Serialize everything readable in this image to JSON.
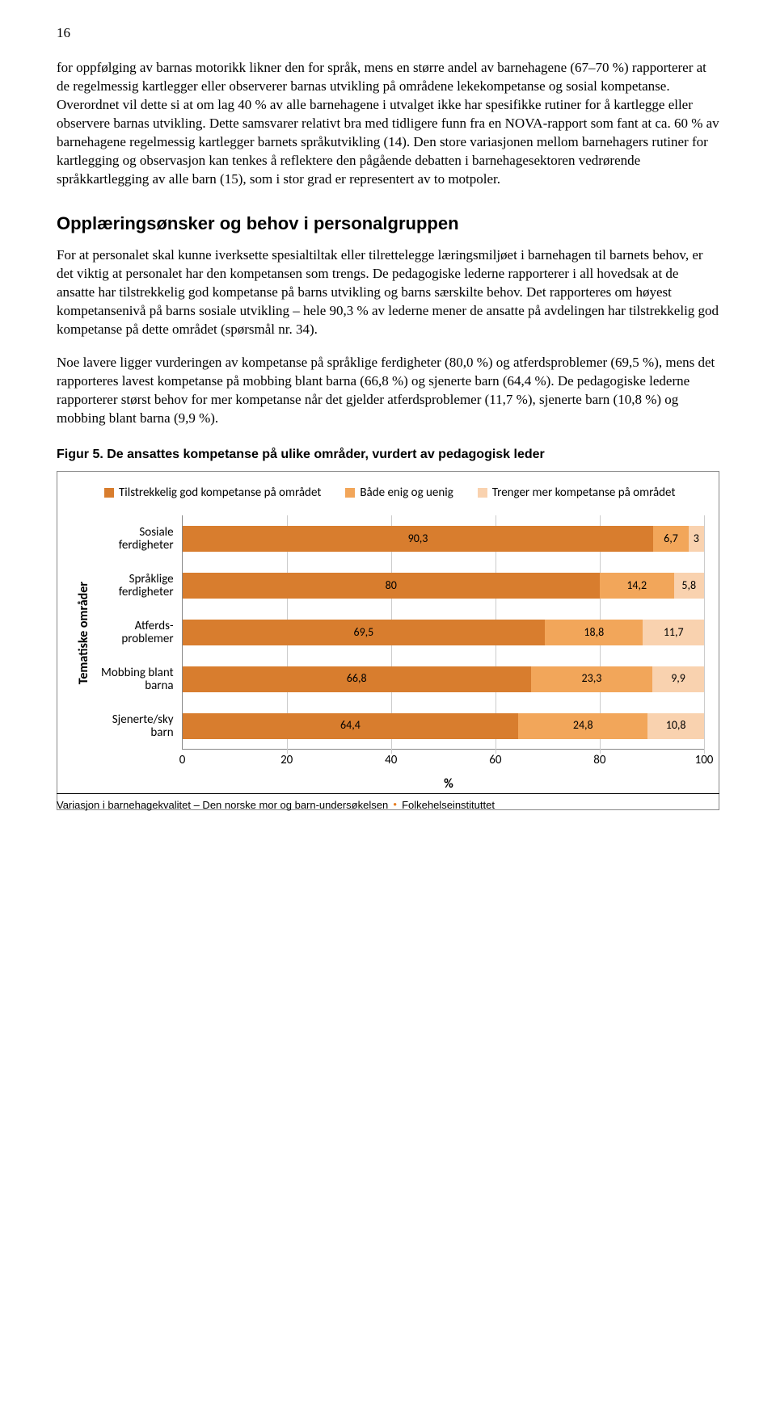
{
  "page_number": "16",
  "paragraphs": {
    "p1": "for oppfølging av barnas motorikk likner den for språk, mens en større andel av barnehagene (67–70 %) rapporterer at de regelmessig kartlegger eller observerer barnas utvikling på områdene lekekompetanse og sosial kompetanse. Overordnet vil dette si at om lag 40 % av alle barnehagene i utvalget ikke har spesifikke rutiner for å kartlegge eller observere barnas utvikling. Dette samsvarer relativt bra med tidligere funn fra en NOVA-rapport som fant at ca. 60 % av barnehagene regelmessig kartlegger barnets språkutvikling (14). Den store variasjonen mellom barnehagers rutiner for kartlegging og observasjon kan tenkes å reflektere den pågående debatten i barnehagesektoren vedrørende språkkartlegging av alle barn (15), som i stor grad er representert av to motpoler.",
    "p2": "For at personalet skal kunne iverksette spesialtiltak eller tilrettelegge læringsmiljøet i barnehagen til barnets behov, er det viktig at personalet har den kompetansen som trengs. De pedagogiske lederne rapporterer i all hovedsak at de ansatte har tilstrekkelig god kompetanse på barns utvikling og barns særskilte behov. Det rapporteres om høyest kompetansenivå på barns sosiale utvikling – hele 90,3 % av lederne mener de ansatte på avdelingen har tilstrekkelig god kompetanse på dette området (spørsmål nr. 34).",
    "p3": "Noe lavere ligger vurderingen av kompetanse på språklige ferdigheter (80,0 %) og atferdsproblemer (69,5 %), mens det rapporteres lavest kompetanse på mobbing blant barna (66,8 %) og sjenerte barn (64,4 %). De pedagogiske lederne rapporterer størst behov for mer kompetanse når det gjelder atferdsproblemer (11,7 %), sjenerte barn (10,8 %) og mobbing blant barna (9,9 %)."
  },
  "section_heading": "Opplæringsønsker og behov i personalgruppen",
  "figure_caption": "Figur 5. De ansattes kompetanse på ulike områder, vurdert av pedagogisk leder",
  "chart": {
    "type": "stacked-horizontal-bar",
    "legend": [
      {
        "label": "Tilstrekkelig god kompetanse på området",
        "color": "#d87d2e"
      },
      {
        "label": "Både enig og uenig",
        "color": "#f2a65a"
      },
      {
        "label": "Trenger mer kompetanse på området",
        "color": "#f9d2af"
      }
    ],
    "yaxis_title": "Tematiske områder",
    "xaxis_title": "%",
    "xlim": [
      0,
      100
    ],
    "xtick_step": 20,
    "xticks": [
      "0",
      "20",
      "40",
      "60",
      "80",
      "100"
    ],
    "categories": [
      {
        "label_line1": "Sosiale",
        "label_line2": "ferdigheter",
        "values": [
          90.3,
          6.7,
          3.0
        ],
        "value_labels": [
          "90,3",
          "6,7",
          "3"
        ]
      },
      {
        "label_line1": "Språklige",
        "label_line2": "ferdigheter",
        "values": [
          80.0,
          14.2,
          5.8
        ],
        "value_labels": [
          "80",
          "14,2",
          "5,8"
        ]
      },
      {
        "label_line1": "Atferds-",
        "label_line2": "problemer",
        "values": [
          69.5,
          18.8,
          11.7
        ],
        "value_labels": [
          "69,5",
          "18,8",
          "11,7"
        ]
      },
      {
        "label_line1": "Mobbing blant",
        "label_line2": "barna",
        "values": [
          66.8,
          23.3,
          9.9
        ],
        "value_labels": [
          "66,8",
          "23,3",
          "9,9"
        ]
      },
      {
        "label_line1": "Sjenerte/sky",
        "label_line2": "barn",
        "values": [
          64.4,
          24.8,
          10.8
        ],
        "value_labels": [
          "64,4",
          "24,8",
          "10,8"
        ]
      }
    ],
    "grid_color": "#cccccc",
    "border_color": "#888888",
    "background_color": "#ffffff"
  },
  "footer": {
    "left": "Variasjon i barnehagekvalitet – Den norske mor og barn-undersøkelsen",
    "right": "Folkehelseinstituttet"
  }
}
